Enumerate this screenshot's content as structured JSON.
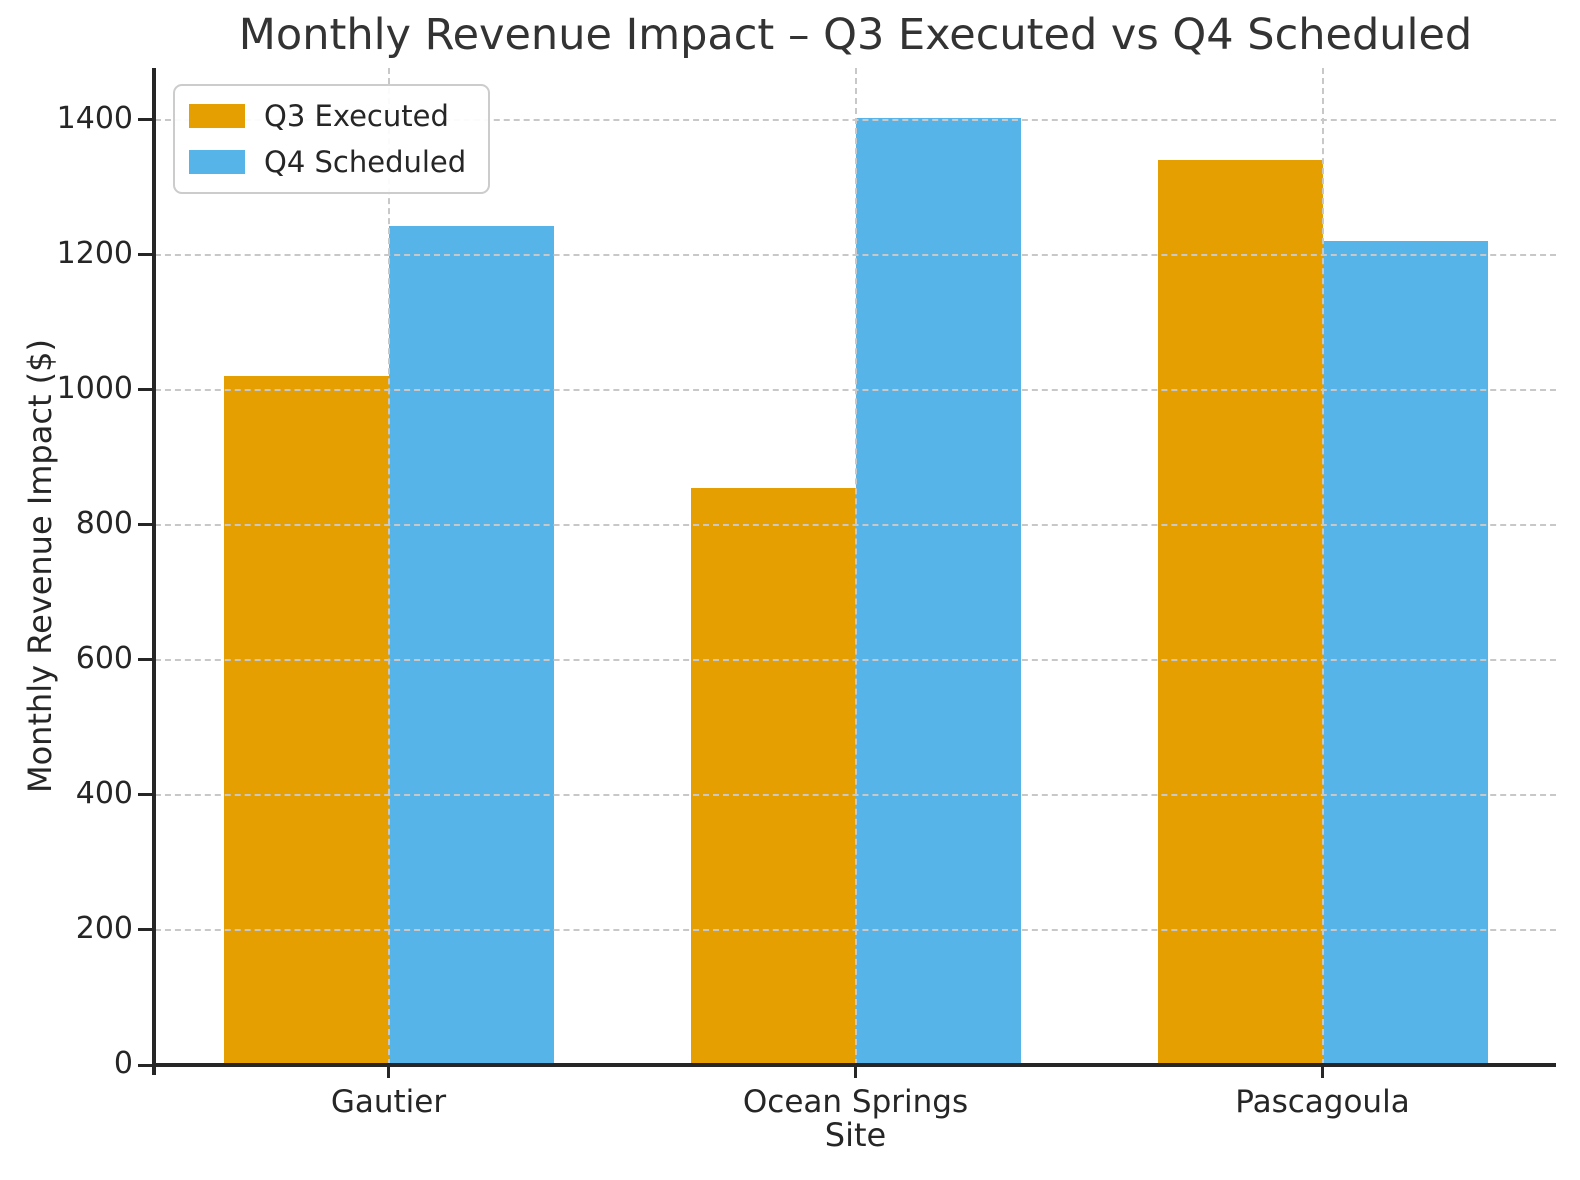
{
  "chart_data": {
    "type": "bar",
    "title": "Monthly Revenue Impact – Q3 Executed vs Q4 Scheduled",
    "xlabel": "Site",
    "ylabel": "Monthly Revenue Impact ($)",
    "categories": [
      "Gautier",
      "Ocean Springs",
      "Pascagoula"
    ],
    "series": [
      {
        "name": "Q3 Executed",
        "color": "#E69F00",
        "values": [
          1020,
          855,
          1340
        ]
      },
      {
        "name": "Q4 Scheduled",
        "color": "#56B4E9",
        "values": [
          1243,
          1403,
          1220
        ]
      }
    ],
    "yticks": [
      0,
      200,
      400,
      600,
      800,
      1000,
      1200,
      1400
    ],
    "ylim": [
      0,
      1477
    ],
    "grid": true,
    "grid_style": "dashed",
    "grid_above_bars": true,
    "legend_position": "upper-left",
    "colors": {
      "text": "#262626",
      "grid": "#c8c8c8",
      "spine": "#262626",
      "background": "#ffffff"
    }
  }
}
